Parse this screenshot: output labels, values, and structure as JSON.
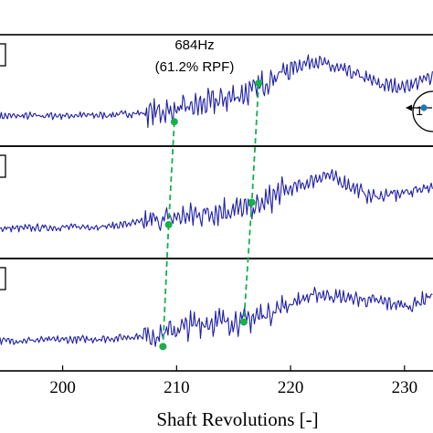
{
  "chart_data": {
    "type": "line",
    "xlabel": "Shaft Revolutions [-]",
    "xlim": [
      194.5,
      232.5
    ],
    "xticks": [
      200,
      210,
      220,
      230
    ],
    "annotation": {
      "frequency": "684Hz",
      "rpf": "(61.2% RPF)"
    },
    "indicator_label": "1",
    "colors": {
      "signal": "#1f1fa8",
      "marker": "#17b04a",
      "link": "#17b04a",
      "indicator_dot": "#1f77b4"
    },
    "panels": [
      {
        "baseline": [
          [
            194.5,
            -0.02
          ],
          [
            204,
            0.0
          ],
          [
            210,
            0.08
          ],
          [
            214,
            0.28
          ],
          [
            216.5,
            0.42
          ],
          [
            218.5,
            0.7
          ],
          [
            220.5,
            0.9
          ],
          [
            222,
            1.0
          ],
          [
            224,
            0.85
          ],
          [
            226,
            0.72
          ],
          [
            228,
            0.55
          ],
          [
            230,
            0.52
          ],
          [
            231.5,
            0.62
          ],
          [
            232.5,
            0.72
          ]
        ],
        "markers": [
          [
            209.8,
            -0.12
          ],
          [
            217.2,
            0.58
          ]
        ]
      },
      {
        "baseline": [
          [
            194.5,
            -0.02
          ],
          [
            204,
            0.02
          ],
          [
            209,
            0.15
          ],
          [
            214,
            0.3
          ],
          [
            217,
            0.35
          ],
          [
            219,
            0.62
          ],
          [
            221.5,
            0.8
          ],
          [
            223,
            0.95
          ],
          [
            225,
            0.78
          ],
          [
            227,
            0.55
          ],
          [
            229.5,
            0.6
          ],
          [
            232.5,
            0.75
          ]
        ],
        "markers": [
          [
            209.3,
            0.05
          ],
          [
            216.6,
            0.45
          ]
        ]
      },
      {
        "baseline": [
          [
            194.5,
            -0.02
          ],
          [
            204,
            0.02
          ],
          [
            208.5,
            0.1
          ],
          [
            212,
            0.3
          ],
          [
            216,
            0.35
          ],
          [
            218,
            0.48
          ],
          [
            220.5,
            0.7
          ],
          [
            222.5,
            0.82
          ],
          [
            225,
            0.75
          ],
          [
            228,
            0.68
          ],
          [
            230.5,
            0.6
          ],
          [
            232.5,
            0.82
          ]
        ],
        "markers": [
          [
            208.8,
            -0.12
          ],
          [
            215.9,
            0.32
          ]
        ]
      }
    ]
  }
}
